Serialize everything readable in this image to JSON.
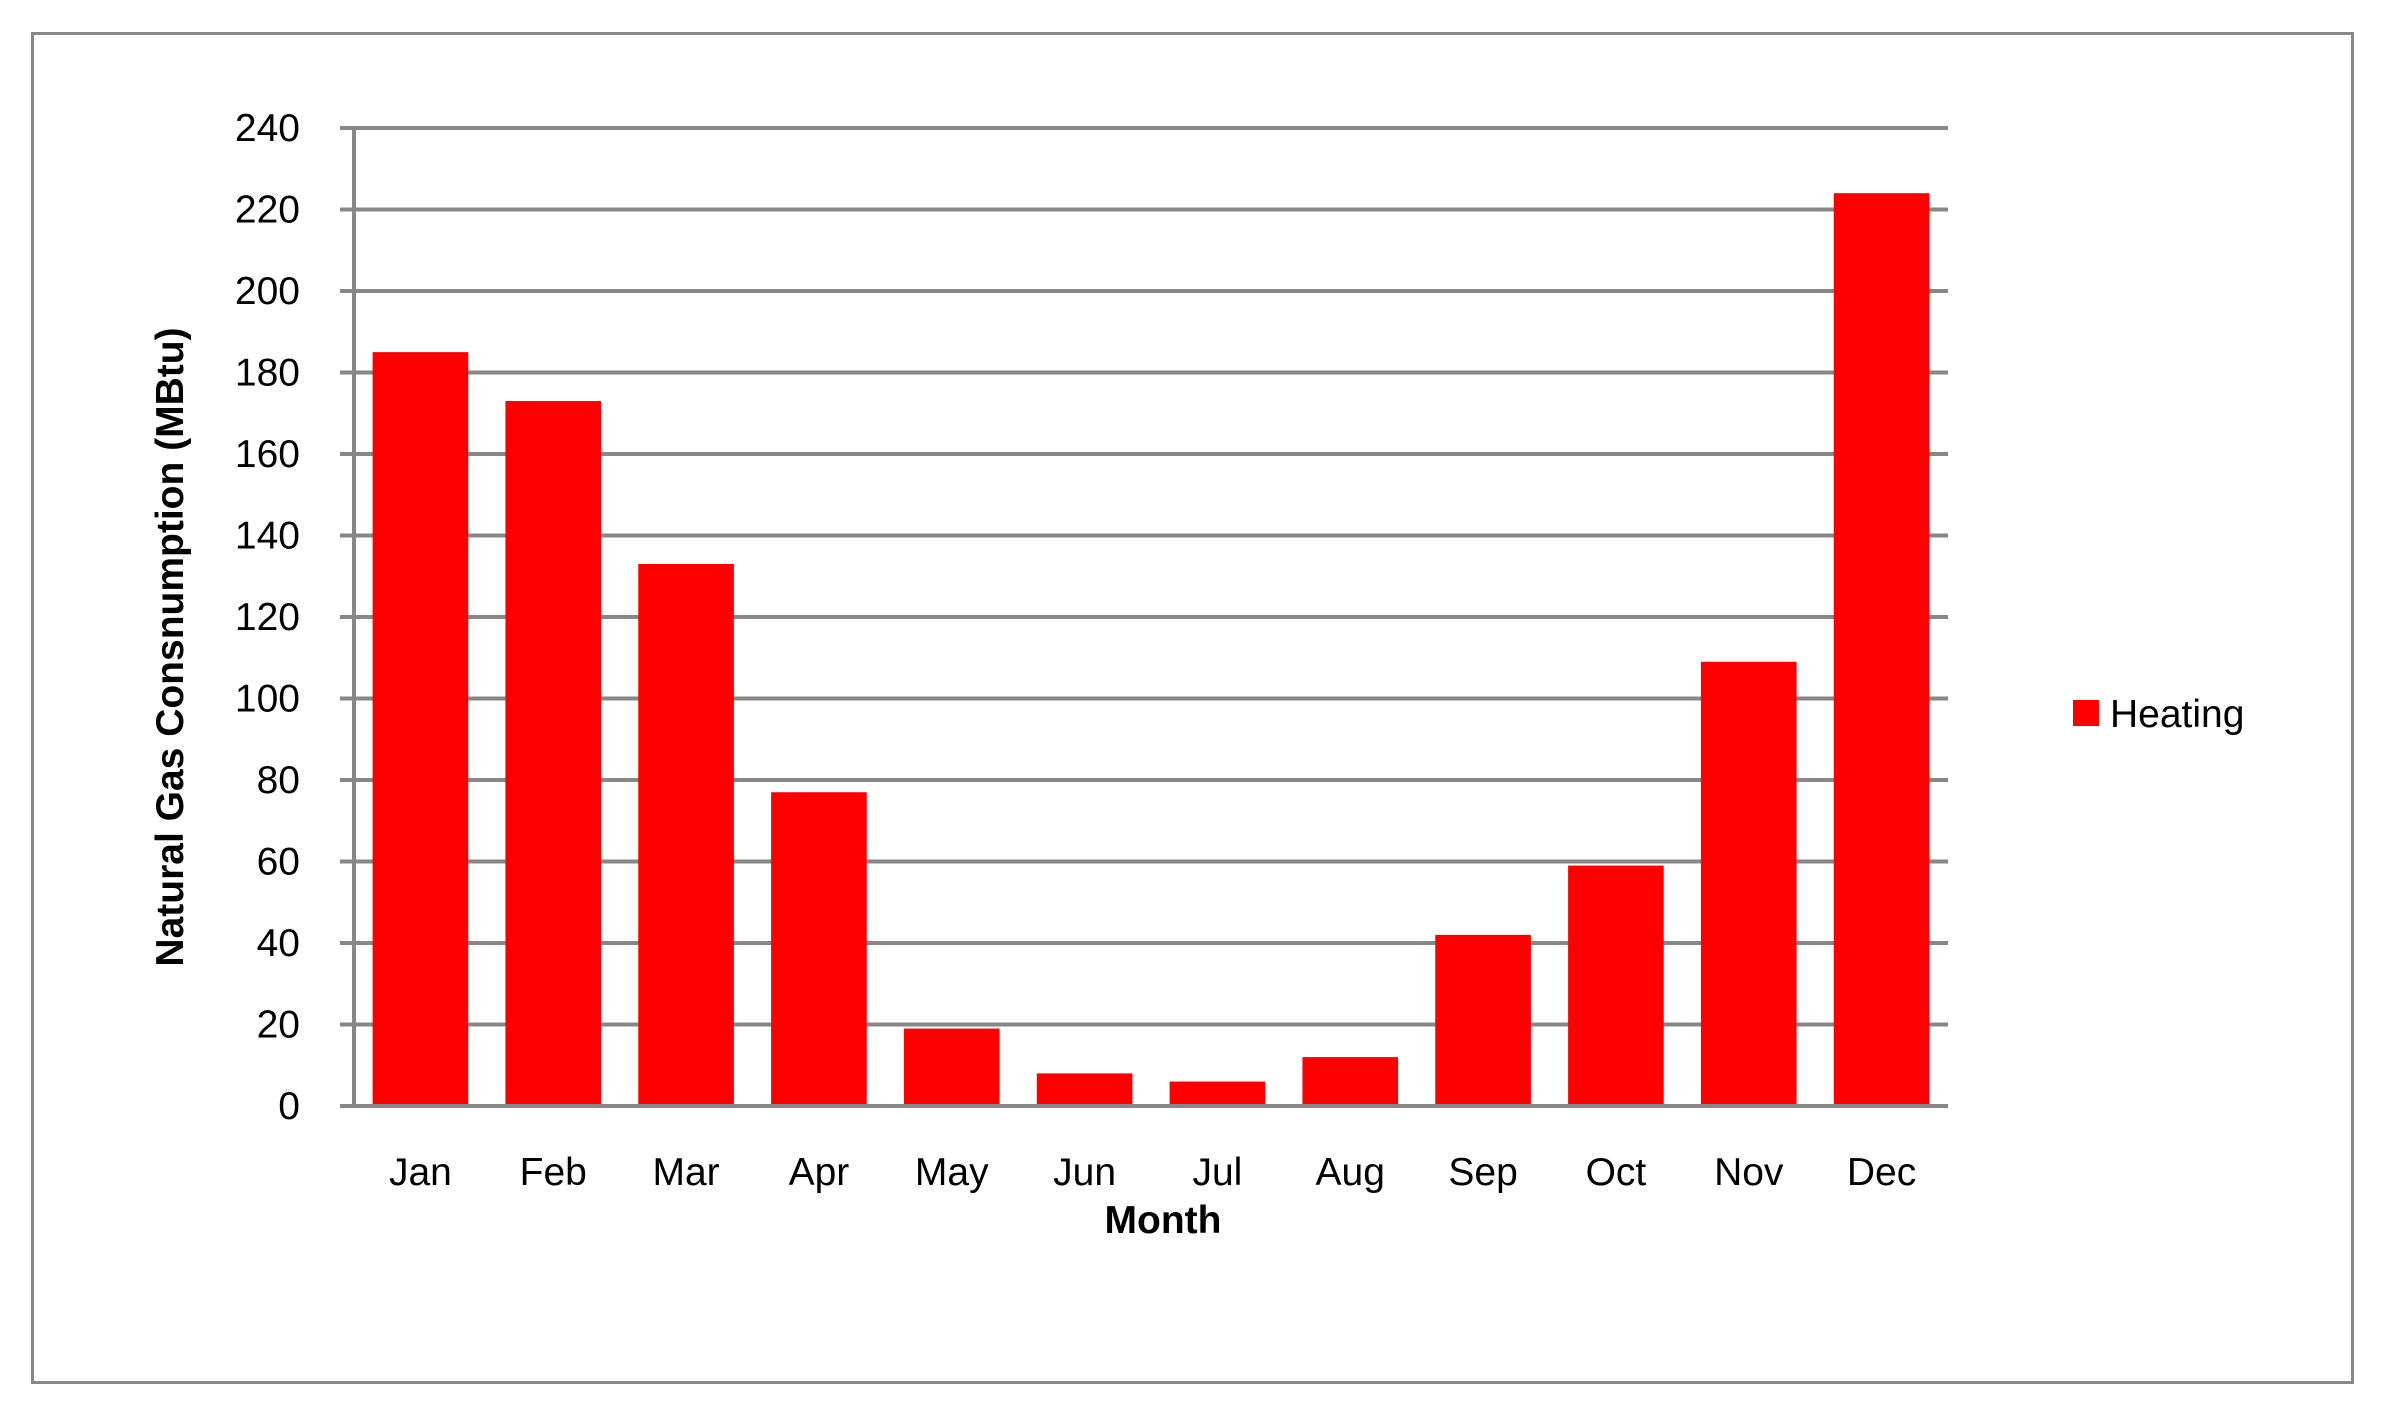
{
  "chart_data": {
    "type": "bar",
    "categories": [
      "Jan",
      "Feb",
      "Mar",
      "Apr",
      "May",
      "Jun",
      "Jul",
      "Aug",
      "Sep",
      "Oct",
      "Nov",
      "Dec"
    ],
    "series": [
      {
        "name": "Heating",
        "color": "#ff0000",
        "values": [
          185,
          173,
          133,
          77,
          19,
          8,
          6,
          12,
          42,
          59,
          109,
          224
        ]
      }
    ],
    "xlabel": "Month",
    "ylabel": "Natural Gas Consnumption (MBtu)",
    "ylim": [
      0,
      240
    ],
    "yticks": [
      "0",
      "20",
      "40",
      "60",
      "80",
      "100",
      "120",
      "140",
      "160",
      "180",
      "200",
      "220",
      "240"
    ],
    "grid": true,
    "legend_position": "right"
  }
}
